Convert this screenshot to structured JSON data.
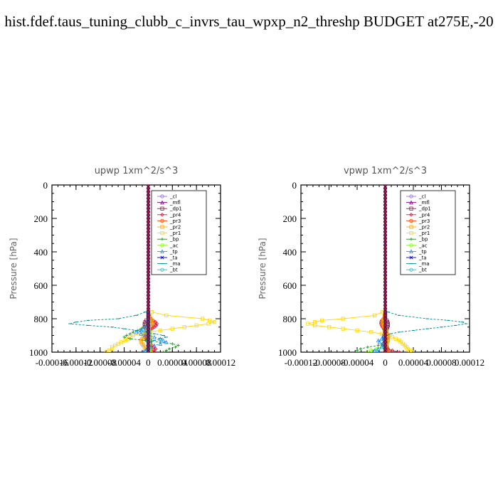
{
  "page_title": "hist.fdef.taus_tuning_clubb_c_invrs_tau_wpxp_n2_threshp  BUDGET at275E,-20",
  "legend_labels": [
    "_cl",
    "_mfl",
    "_dp1",
    "_pr4",
    "_pr3",
    "_pr2",
    "_pr1",
    "_bp",
    "_ac",
    "_tp",
    "_ta",
    "_ma",
    "_bt"
  ],
  "series_colors": {
    "_cl": "#9370db",
    "_mfl": "#800080",
    "_dp1": "#8b1a4a",
    "_pr4": "#dc143c",
    "_pr3": "#ff4500",
    "_pr2": "#ffa500",
    "_pr1": "#ffd700",
    "_bp": "#228b22",
    "_ac": "#7cfc00",
    "_tp": "#1e90ff",
    "_ta": "#0000cd",
    "_ma": "#008b8b",
    "_bt": "#00ced1"
  },
  "chart_data": [
    {
      "type": "line",
      "title": "upwp   1xm^2/s^3",
      "ylabel": "Pressure [hPa]",
      "ylim": [
        1000,
        0
      ],
      "xlim": [
        -0.00016,
        0.00012
      ],
      "xticks": [
        "-0.00016",
        "-0.00012",
        "-0.00008",
        "-0.00004",
        "0",
        "0.00004",
        "0.00008",
        "0.00012"
      ],
      "yticks": [
        "0",
        "200",
        "400",
        "600",
        "800",
        "1000"
      ],
      "pressure": [
        760,
        780,
        800,
        810,
        820,
        830,
        840,
        850,
        860,
        870,
        880,
        890,
        900,
        910,
        920,
        930,
        940,
        950,
        960,
        970,
        980,
        990,
        1000
      ],
      "series": [
        {
          "name": "_cl",
          "values": [
            0,
            0,
            0,
            0,
            0,
            0,
            0,
            0,
            0,
            0,
            0,
            0,
            0,
            0,
            0,
            0,
            0,
            0,
            0,
            0,
            0,
            0,
            0
          ]
        },
        {
          "name": "_mfl",
          "values": [
            0,
            0,
            0,
            0,
            0,
            0,
            0,
            0,
            0,
            0,
            0,
            0,
            0,
            0,
            0,
            0,
            0,
            0,
            0,
            0,
            0,
            0,
            0
          ]
        },
        {
          "name": "_dp1",
          "values": [
            0,
            0,
            0,
            -3e-06,
            -5e-06,
            -6e-06,
            -6e-06,
            -5e-06,
            -3e-06,
            -2e-06,
            -1e-06,
            0,
            1e-06,
            2e-06,
            2e-06,
            3e-06,
            3e-06,
            2e-06,
            1e-06,
            0,
            0,
            0,
            0
          ]
        },
        {
          "name": "_pr4",
          "values": [
            0,
            1e-06,
            4e-06,
            8e-06,
            1.2e-05,
            1.4e-05,
            1.3e-05,
            1e-05,
            6e-06,
            2e-06,
            -2e-06,
            -5e-06,
            -7e-06,
            -6e-06,
            -4e-06,
            -2e-06,
            0,
            3e-06,
            6e-06,
            9e-06,
            1.2e-05,
            1e-05,
            5e-06
          ]
        },
        {
          "name": "_pr3",
          "values": [
            0,
            1e-06,
            3e-06,
            5e-06,
            7e-06,
            8e-06,
            8e-06,
            6e-06,
            4e-06,
            2e-06,
            0,
            -2e-06,
            -3e-06,
            -3e-06,
            -2e-06,
            -1e-06,
            0,
            2e-06,
            3e-06,
            4e-06,
            5e-06,
            4e-06,
            2e-06
          ]
        },
        {
          "name": "_pr2",
          "values": [
            0,
            2e-06,
            4e-06,
            6e-06,
            6e-06,
            5e-06,
            3e-06,
            1e-06,
            -1e-06,
            -2e-06,
            -3e-06,
            -4e-06,
            -6e-06,
            -8e-06,
            -1e-05,
            -1.2e-05,
            -1.2e-05,
            -1e-05,
            -8e-06,
            -6e-06,
            -4e-06,
            -2e-06,
            0
          ]
        },
        {
          "name": "_pr1",
          "values": [
            6e-06,
            3e-05,
            9e-05,
            0.000102,
            0.00011,
            0.0001,
            8e-05,
            6e-05,
            4e-05,
            2e-05,
            0,
            -1.2e-05,
            -2.5e-05,
            -3e-05,
            -3.5e-05,
            -3.8e-05,
            -4.5e-05,
            -5e-05,
            -5.5e-05,
            -6e-05,
            -6e-05,
            -6.5e-05,
            -7e-05
          ]
        },
        {
          "name": "_bp",
          "values": [
            0,
            0,
            0,
            0,
            0,
            0,
            -3e-06,
            -8e-06,
            -1.2e-05,
            -1.8e-05,
            -2.5e-05,
            -3e-05,
            -3.6e-05,
            -4e-05,
            -3e-05,
            -5e-06,
            2e-05,
            4e-05,
            5e-05,
            4.5e-05,
            3.5e-05,
            3e-05,
            2.5e-05
          ]
        },
        {
          "name": "_ac",
          "values": [
            0,
            0,
            0,
            0,
            0,
            0,
            0,
            0,
            1e-06,
            2e-06,
            3e-06,
            3e-06,
            3e-06,
            2e-06,
            2e-06,
            2e-06,
            2e-06,
            2e-06,
            2e-06,
            2e-06,
            3e-06,
            3e-06,
            4e-06
          ]
        },
        {
          "name": "_tp",
          "values": [
            0,
            0,
            0,
            0,
            0,
            0,
            0,
            -4e-06,
            -8e-06,
            -1.2e-05,
            -2e-05,
            -1.2e-05,
            -5e-06,
            1e-05,
            2e-05,
            2.5e-05,
            3e-05,
            2e-05,
            1e-05,
            4e-06,
            -2e-06,
            -5e-06,
            -8e-06
          ]
        },
        {
          "name": "_ta",
          "values": [
            0,
            0,
            0,
            0,
            0,
            0,
            0,
            0,
            0,
            0,
            0,
            0,
            0,
            0,
            0,
            0,
            0,
            0,
            0,
            0,
            0,
            0,
            0
          ]
        },
        {
          "name": "_ma",
          "values": [
            -5e-06,
            -2e-05,
            -5e-05,
            -0.0001,
            -0.00012,
            -0.00013,
            -0.0001,
            -6e-05,
            -4e-05,
            -2e-05,
            -5e-06,
            1e-05,
            2.5e-05,
            3e-05,
            2e-05,
            1e-05,
            4e-06,
            0,
            0,
            0,
            0,
            0,
            0
          ]
        },
        {
          "name": "_bt",
          "values": [
            0,
            0,
            0,
            0,
            0,
            0,
            0,
            0,
            0,
            0,
            0,
            0,
            0,
            0,
            0,
            0,
            0,
            0,
            0,
            0,
            0,
            0,
            0
          ]
        }
      ]
    },
    {
      "type": "line",
      "title": "vpwp   1xm^2/s^3",
      "ylabel": "Pressure [hPa]",
      "ylim": [
        1000,
        0
      ],
      "xlim": [
        -0.00012,
        0.00012
      ],
      "xticks": [
        "-0.00012",
        "-0.00008",
        "-0.00004",
        "0",
        "0.00004",
        "0.00008",
        "0.00012"
      ],
      "yticks": [
        "0",
        "200",
        "400",
        "600",
        "800",
        "1000"
      ],
      "pressure": [
        760,
        780,
        800,
        810,
        820,
        830,
        840,
        850,
        860,
        870,
        880,
        890,
        900,
        910,
        920,
        930,
        940,
        950,
        960,
        970,
        980,
        990,
        1000
      ],
      "series": [
        {
          "name": "_cl",
          "values": [
            0,
            0,
            0,
            0,
            0,
            0,
            0,
            0,
            0,
            0,
            0,
            0,
            0,
            0,
            0,
            0,
            0,
            0,
            0,
            0,
            0,
            0,
            0
          ]
        },
        {
          "name": "_mfl",
          "values": [
            0,
            0,
            0,
            0,
            0,
            0,
            0,
            0,
            0,
            0,
            0,
            0,
            0,
            0,
            0,
            0,
            0,
            0,
            0,
            0,
            0,
            0,
            0
          ]
        },
        {
          "name": "_dp1",
          "values": [
            0,
            0,
            0,
            2e-06,
            3e-06,
            4e-06,
            4e-06,
            3e-06,
            2e-06,
            1e-06,
            0,
            -1e-06,
            -2e-06,
            -2e-06,
            -2e-06,
            -1e-06,
            0,
            1e-06,
            2e-06,
            2e-06,
            2e-06,
            1e-06,
            0
          ]
        },
        {
          "name": "_pr4",
          "values": [
            0,
            -1e-06,
            -3e-06,
            -5e-06,
            -6e-06,
            -6e-06,
            -5e-06,
            -4e-06,
            -2e-06,
            0,
            2e-06,
            3e-06,
            4e-06,
            4e-06,
            3e-06,
            2e-06,
            0,
            -2e-06,
            -3e-06,
            0,
            4e-06,
            1e-05,
            2e-05
          ]
        },
        {
          "name": "_pr3",
          "values": [
            0,
            -1e-06,
            -2e-06,
            -3e-06,
            -4e-06,
            -4e-06,
            -4e-06,
            -3e-06,
            -2e-06,
            -1e-06,
            0,
            1e-06,
            2e-06,
            2e-06,
            2e-06,
            1e-06,
            0,
            -1e-06,
            -1e-06,
            0,
            2e-06,
            4e-06,
            6e-06
          ]
        },
        {
          "name": "_pr2",
          "values": [
            0,
            -1e-06,
            -2e-06,
            -3e-06,
            -3e-06,
            -3e-06,
            -2e-06,
            -1e-06,
            0,
            1e-06,
            2e-06,
            2e-06,
            3e-06,
            4e-06,
            4e-06,
            4e-06,
            3e-06,
            2e-06,
            1e-06,
            0,
            0,
            0,
            0
          ]
        },
        {
          "name": "_pr1",
          "values": [
            -4e-06,
            -1.5e-05,
            -6e-05,
            -9e-05,
            -0.0001,
            -0.00011,
            -0.0001,
            -8e-05,
            -6e-05,
            -4e-05,
            -2e-05,
            -5e-06,
            5e-06,
            1e-05,
            1.5e-05,
            2e-05,
            2.2e-05,
            2.5e-05,
            2.8e-05,
            3e-05,
            3.2e-05,
            3.5e-05,
            3.8e-05
          ]
        },
        {
          "name": "_bp",
          "values": [
            0,
            0,
            0,
            0,
            0,
            0,
            0,
            0,
            0,
            0,
            0,
            0,
            0,
            0,
            0,
            0,
            2e-06,
            0,
            -1e-05,
            -2.5e-05,
            -3.5e-05,
            -4e-05,
            -4e-05
          ]
        },
        {
          "name": "_ac",
          "values": [
            0,
            0,
            0,
            0,
            0,
            0,
            0,
            0,
            0,
            0,
            0,
            0,
            0,
            0,
            0,
            0,
            0,
            0,
            0,
            -5e-06,
            -1.2e-05,
            -2e-05,
            -2.5e-05
          ]
        },
        {
          "name": "_tp",
          "values": [
            0,
            0,
            0,
            0,
            0,
            0,
            0,
            0,
            0,
            0,
            0,
            0,
            0,
            -2e-06,
            -5e-06,
            -1e-05,
            -8e-06,
            -4e-06,
            -2e-06,
            -5e-06,
            -1e-05,
            -1.5e-05,
            -1e-05
          ]
        },
        {
          "name": "_ta",
          "values": [
            0,
            0,
            0,
            0,
            0,
            0,
            0,
            0,
            0,
            0,
            0,
            0,
            0,
            0,
            0,
            0,
            0,
            0,
            0,
            0,
            0,
            0,
            0
          ]
        },
        {
          "name": "_ma",
          "values": [
            4e-06,
            2e-05,
            6e-05,
            9e-05,
            0.00011,
            0.000115,
            0.0001,
            8e-05,
            6e-05,
            4e-05,
            2e-05,
            8e-06,
            2e-06,
            0,
            0,
            0,
            0,
            0,
            0,
            0,
            0,
            0,
            0
          ]
        },
        {
          "name": "_bt",
          "values": [
            0,
            0,
            0,
            0,
            0,
            0,
            0,
            0,
            0,
            0,
            0,
            0,
            0,
            0,
            0,
            0,
            0,
            0,
            0,
            0,
            0,
            0,
            0
          ]
        }
      ]
    }
  ]
}
